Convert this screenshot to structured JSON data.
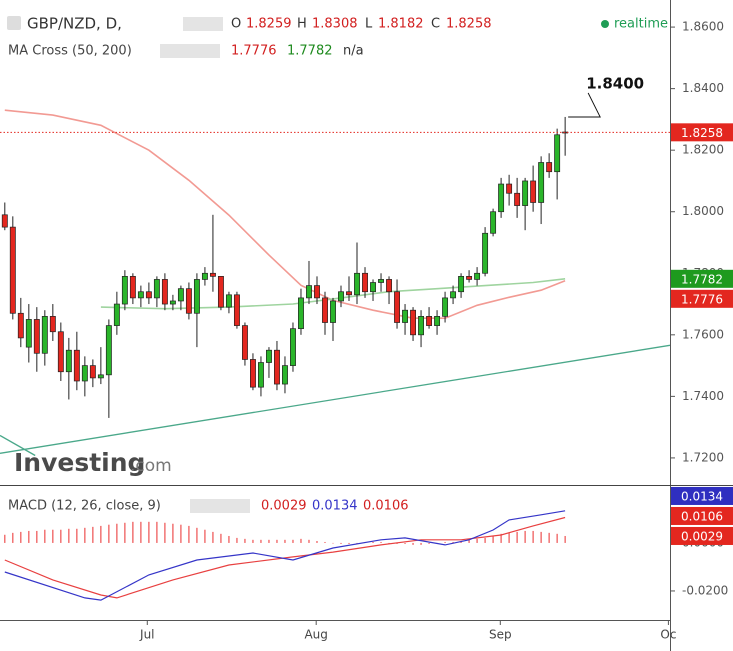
{
  "chart_data": [
    {
      "type": "candlestick",
      "title": "GBP/NZD, D,",
      "ohlc_labels": [
        "O",
        "H",
        "L",
        "C"
      ],
      "realtime": "realtime",
      "indicator": "MA Cross (50, 200)",
      "indicator_na": "n/a",
      "annotation": "1.8400",
      "watermark": [
        "Investing",
        ".com"
      ],
      "up_color": "#2ab52a",
      "down_color": "#e3271f",
      "xlim": [
        -0.6,
        83.1
      ],
      "ylim": [
        1.7112,
        1.8688
      ],
      "yticks": [
        {
          "value": 1.72,
          "label": "1.7200"
        },
        {
          "value": 1.74,
          "label": "1.7400"
        },
        {
          "value": 1.76,
          "label": "1.7600"
        },
        {
          "value": 1.78,
          "label": "1.7800"
        },
        {
          "value": 1.8,
          "label": "1.8000"
        },
        {
          "value": 1.82,
          "label": "1.8200"
        },
        {
          "value": 1.84,
          "label": "1.8400"
        },
        {
          "value": 1.86,
          "label": "1.8600"
        }
      ],
      "candles": {
        "open": [
          1.799,
          1.795,
          1.767,
          1.756,
          1.765,
          1.754,
          1.766,
          1.761,
          1.748,
          1.755,
          1.745,
          1.75,
          1.746,
          1.747,
          1.763,
          1.77,
          1.779,
          1.772,
          1.774,
          1.772,
          1.778,
          1.77,
          1.771,
          1.775,
          1.767,
          1.778,
          1.78,
          1.779,
          1.769,
          1.773,
          1.763,
          1.752,
          1.743,
          1.751,
          1.755,
          1.744,
          1.75,
          1.762,
          1.772,
          1.776,
          1.772,
          1.764,
          1.771,
          1.774,
          1.773,
          1.78,
          1.774,
          1.777,
          1.778,
          1.774,
          1.764,
          1.768,
          1.76,
          1.766,
          1.763,
          1.766,
          1.772,
          1.774,
          1.779,
          1.778,
          1.78,
          1.793,
          1.8,
          1.809,
          1.806,
          1.802,
          1.81,
          1.803,
          1.816,
          1.813,
          1.8259
        ],
        "high": [
          1.803,
          1.7985,
          1.772,
          1.77,
          1.769,
          1.768,
          1.77,
          1.764,
          1.759,
          1.761,
          1.753,
          1.752,
          1.756,
          1.765,
          1.774,
          1.781,
          1.78,
          1.776,
          1.777,
          1.779,
          1.78,
          1.773,
          1.776,
          1.777,
          1.78,
          1.782,
          1.799,
          1.779,
          1.774,
          1.774,
          1.764,
          1.754,
          1.753,
          1.756,
          1.758,
          1.753,
          1.764,
          1.775,
          1.784,
          1.779,
          1.774,
          1.772,
          1.776,
          1.779,
          1.79,
          1.782,
          1.778,
          1.78,
          1.779,
          1.778,
          1.77,
          1.769,
          1.768,
          1.769,
          1.768,
          1.774,
          1.776,
          1.78,
          1.781,
          1.782,
          1.795,
          1.801,
          1.811,
          1.812,
          1.811,
          1.811,
          1.815,
          1.818,
          1.819,
          1.827,
          1.8308
        ],
        "low": [
          1.794,
          1.765,
          1.756,
          1.751,
          1.748,
          1.75,
          1.758,
          1.745,
          1.739,
          1.742,
          1.74,
          1.743,
          1.744,
          1.733,
          1.76,
          1.768,
          1.77,
          1.769,
          1.77,
          1.769,
          1.768,
          1.768,
          1.768,
          1.765,
          1.756,
          1.776,
          1.774,
          1.768,
          1.767,
          1.762,
          1.75,
          1.742,
          1.74,
          1.746,
          1.742,
          1.741,
          1.748,
          1.76,
          1.77,
          1.77,
          1.76,
          1.758,
          1.769,
          1.771,
          1.77,
          1.772,
          1.771,
          1.774,
          1.77,
          1.762,
          1.76,
          1.758,
          1.756,
          1.762,
          1.76,
          1.764,
          1.77,
          1.772,
          1.777,
          1.776,
          1.779,
          1.792,
          1.798,
          1.802,
          1.798,
          1.794,
          1.8,
          1.796,
          1.811,
          1.804,
          1.8182
        ],
        "close": [
          1.795,
          1.767,
          1.759,
          1.765,
          1.754,
          1.766,
          1.761,
          1.748,
          1.755,
          1.745,
          1.75,
          1.746,
          1.747,
          1.763,
          1.77,
          1.779,
          1.772,
          1.774,
          1.772,
          1.778,
          1.77,
          1.771,
          1.775,
          1.767,
          1.778,
          1.78,
          1.779,
          1.769,
          1.773,
          1.763,
          1.752,
          1.743,
          1.751,
          1.755,
          1.744,
          1.75,
          1.762,
          1.772,
          1.776,
          1.772,
          1.764,
          1.771,
          1.774,
          1.773,
          1.78,
          1.774,
          1.777,
          1.778,
          1.774,
          1.764,
          1.768,
          1.76,
          1.766,
          1.763,
          1.766,
          1.772,
          1.774,
          1.779,
          1.778,
          1.78,
          1.793,
          1.8,
          1.809,
          1.806,
          1.802,
          1.81,
          1.803,
          1.816,
          1.813,
          1.825,
          1.8258
        ]
      },
      "ma50": {
        "color": "#f29a93",
        "x": [
          0,
          6,
          12,
          18,
          23,
          28,
          33,
          37,
          41,
          46,
          51,
          55,
          59,
          63,
          67,
          70
        ],
        "values": [
          1.833,
          1.8314,
          1.8281,
          1.82,
          1.8102,
          1.7989,
          1.7859,
          1.7761,
          1.7712,
          1.768,
          1.7654,
          1.7654,
          1.7696,
          1.7722,
          1.7745,
          1.7776
        ]
      },
      "ma200": {
        "color": "#9fd49f",
        "x": [
          12,
          20,
          28,
          36,
          42,
          48,
          54,
          60,
          66,
          70
        ],
        "values": [
          1.769,
          1.7685,
          1.769,
          1.77,
          1.772,
          1.774,
          1.775,
          1.776,
          1.777,
          1.7782
        ]
      },
      "trendlines": {
        "color": "#4aa88a",
        "lines": [
          {
            "x": [
              -0.6,
              83.1
            ],
            "values": [
              1.7215,
              1.7566
            ]
          },
          {
            "x": [
              -0.6,
              3.8
            ],
            "values": [
              1.7273,
              1.7208
            ]
          }
        ]
      }
    },
    {
      "type": "macd",
      "title": "MACD (12, 26, close, 9)",
      "xlim": [
        -0.6,
        83.1
      ],
      "ylim": [
        -0.0321,
        0.0233
      ],
      "yticks": [
        {
          "value": -0.02,
          "label": "-0.0200"
        },
        {
          "value": 0,
          "label": "0.0000"
        }
      ],
      "xticks": [
        {
          "value": 17.8,
          "label": "Jul"
        },
        {
          "value": 38.9,
          "label": "Aug"
        },
        {
          "value": 61.9,
          "label": "Sep"
        },
        {
          "value": 82.9,
          "label": "Oc"
        }
      ],
      "histogram": {
        "color": "#ee5050",
        "values": [
          0.0034,
          0.0042,
          0.0046,
          0.005,
          0.005,
          0.0055,
          0.0055,
          0.0055,
          0.0059,
          0.0059,
          0.0063,
          0.0067,
          0.0071,
          0.0076,
          0.008,
          0.0084,
          0.0088,
          0.0088,
          0.0088,
          0.0088,
          0.0084,
          0.008,
          0.0076,
          0.0071,
          0.0063,
          0.0055,
          0.0046,
          0.0038,
          0.0029,
          0.0021,
          0.0017,
          0.0013,
          0.0013,
          0.0013,
          0.0013,
          0.0013,
          0.0013,
          0.0017,
          0.0013,
          0.0008,
          0.0004,
          0,
          -0.0004,
          -0.0004,
          0,
          0.0004,
          0.0004,
          0.0004,
          0,
          -0.0004,
          -0.0004,
          -0.0008,
          -0.0008,
          -0.0004,
          0,
          0.0004,
          0.0004,
          0.0008,
          0.0013,
          0.0017,
          0.0021,
          0.0029,
          0.0038,
          0.0042,
          0.0046,
          0.005,
          0.005,
          0.0046,
          0.0042,
          0.0038,
          0.0029
        ]
      },
      "macd": {
        "color": "#3535c8",
        "x": [
          0,
          10,
          12,
          18,
          24,
          31,
          36,
          41,
          47,
          50,
          55,
          58,
          61,
          63,
          67,
          70
        ],
        "values": [
          -0.0121,
          -0.0229,
          -0.0238,
          -0.0133,
          -0.0071,
          -0.0042,
          -0.0071,
          -0.0021,
          0.0013,
          0.0021,
          -0.0008,
          0.0013,
          0.0054,
          0.0096,
          0.0117,
          0.0134
        ]
      },
      "signal": {
        "color": "#e84040",
        "x": [
          0,
          6,
          12,
          14,
          21,
          28,
          36,
          41,
          47,
          52,
          57,
          62,
          66,
          70
        ],
        "values": [
          -0.0071,
          -0.0154,
          -0.0217,
          -0.0229,
          -0.0154,
          -0.0092,
          -0.0058,
          -0.0038,
          -0.0008,
          0.0013,
          0.0013,
          0.0033,
          0.0071,
          0.0106
        ]
      }
    }
  ]
}
